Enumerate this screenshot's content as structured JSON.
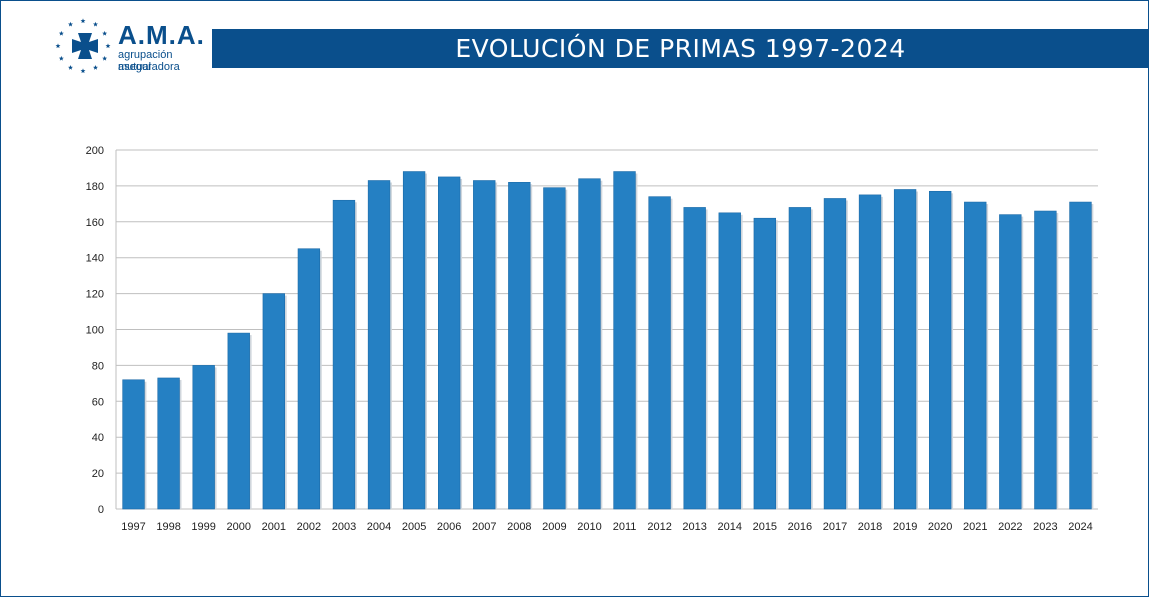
{
  "header": {
    "logo_name": "A.M.A.",
    "logo_sub1": "agrupación mutual",
    "logo_sub2": "aseguradora",
    "title": "EVOLUCIÓN DE PRIMAS 1997-2024"
  },
  "colors": {
    "brand": "#0a4f8c",
    "bar": "#2580c3",
    "grid": "#bfbfbf"
  },
  "chart_data": {
    "type": "bar",
    "title": "EVOLUCIÓN DE PRIMAS 1997-2024",
    "xlabel": "",
    "ylabel": "",
    "ylim": [
      0,
      200
    ],
    "yticks": [
      0,
      20,
      40,
      60,
      80,
      100,
      120,
      140,
      160,
      180,
      200
    ],
    "grid": true,
    "legend": "none",
    "categories": [
      "1997",
      "1998",
      "1999",
      "2000",
      "2001",
      "2002",
      "2003",
      "2004",
      "2005",
      "2006",
      "2007",
      "2008",
      "2009",
      "2010",
      "2011",
      "2012",
      "2013",
      "2014",
      "2015",
      "2016",
      "2017",
      "2018",
      "2019",
      "2020",
      "2021",
      "2022",
      "2023",
      "2024"
    ],
    "values": [
      72,
      73,
      80,
      98,
      120,
      145,
      172,
      183,
      188,
      185,
      183,
      182,
      179,
      184,
      188,
      174,
      168,
      165,
      162,
      168,
      173,
      175,
      178,
      177,
      171,
      164,
      166,
      171
    ]
  }
}
